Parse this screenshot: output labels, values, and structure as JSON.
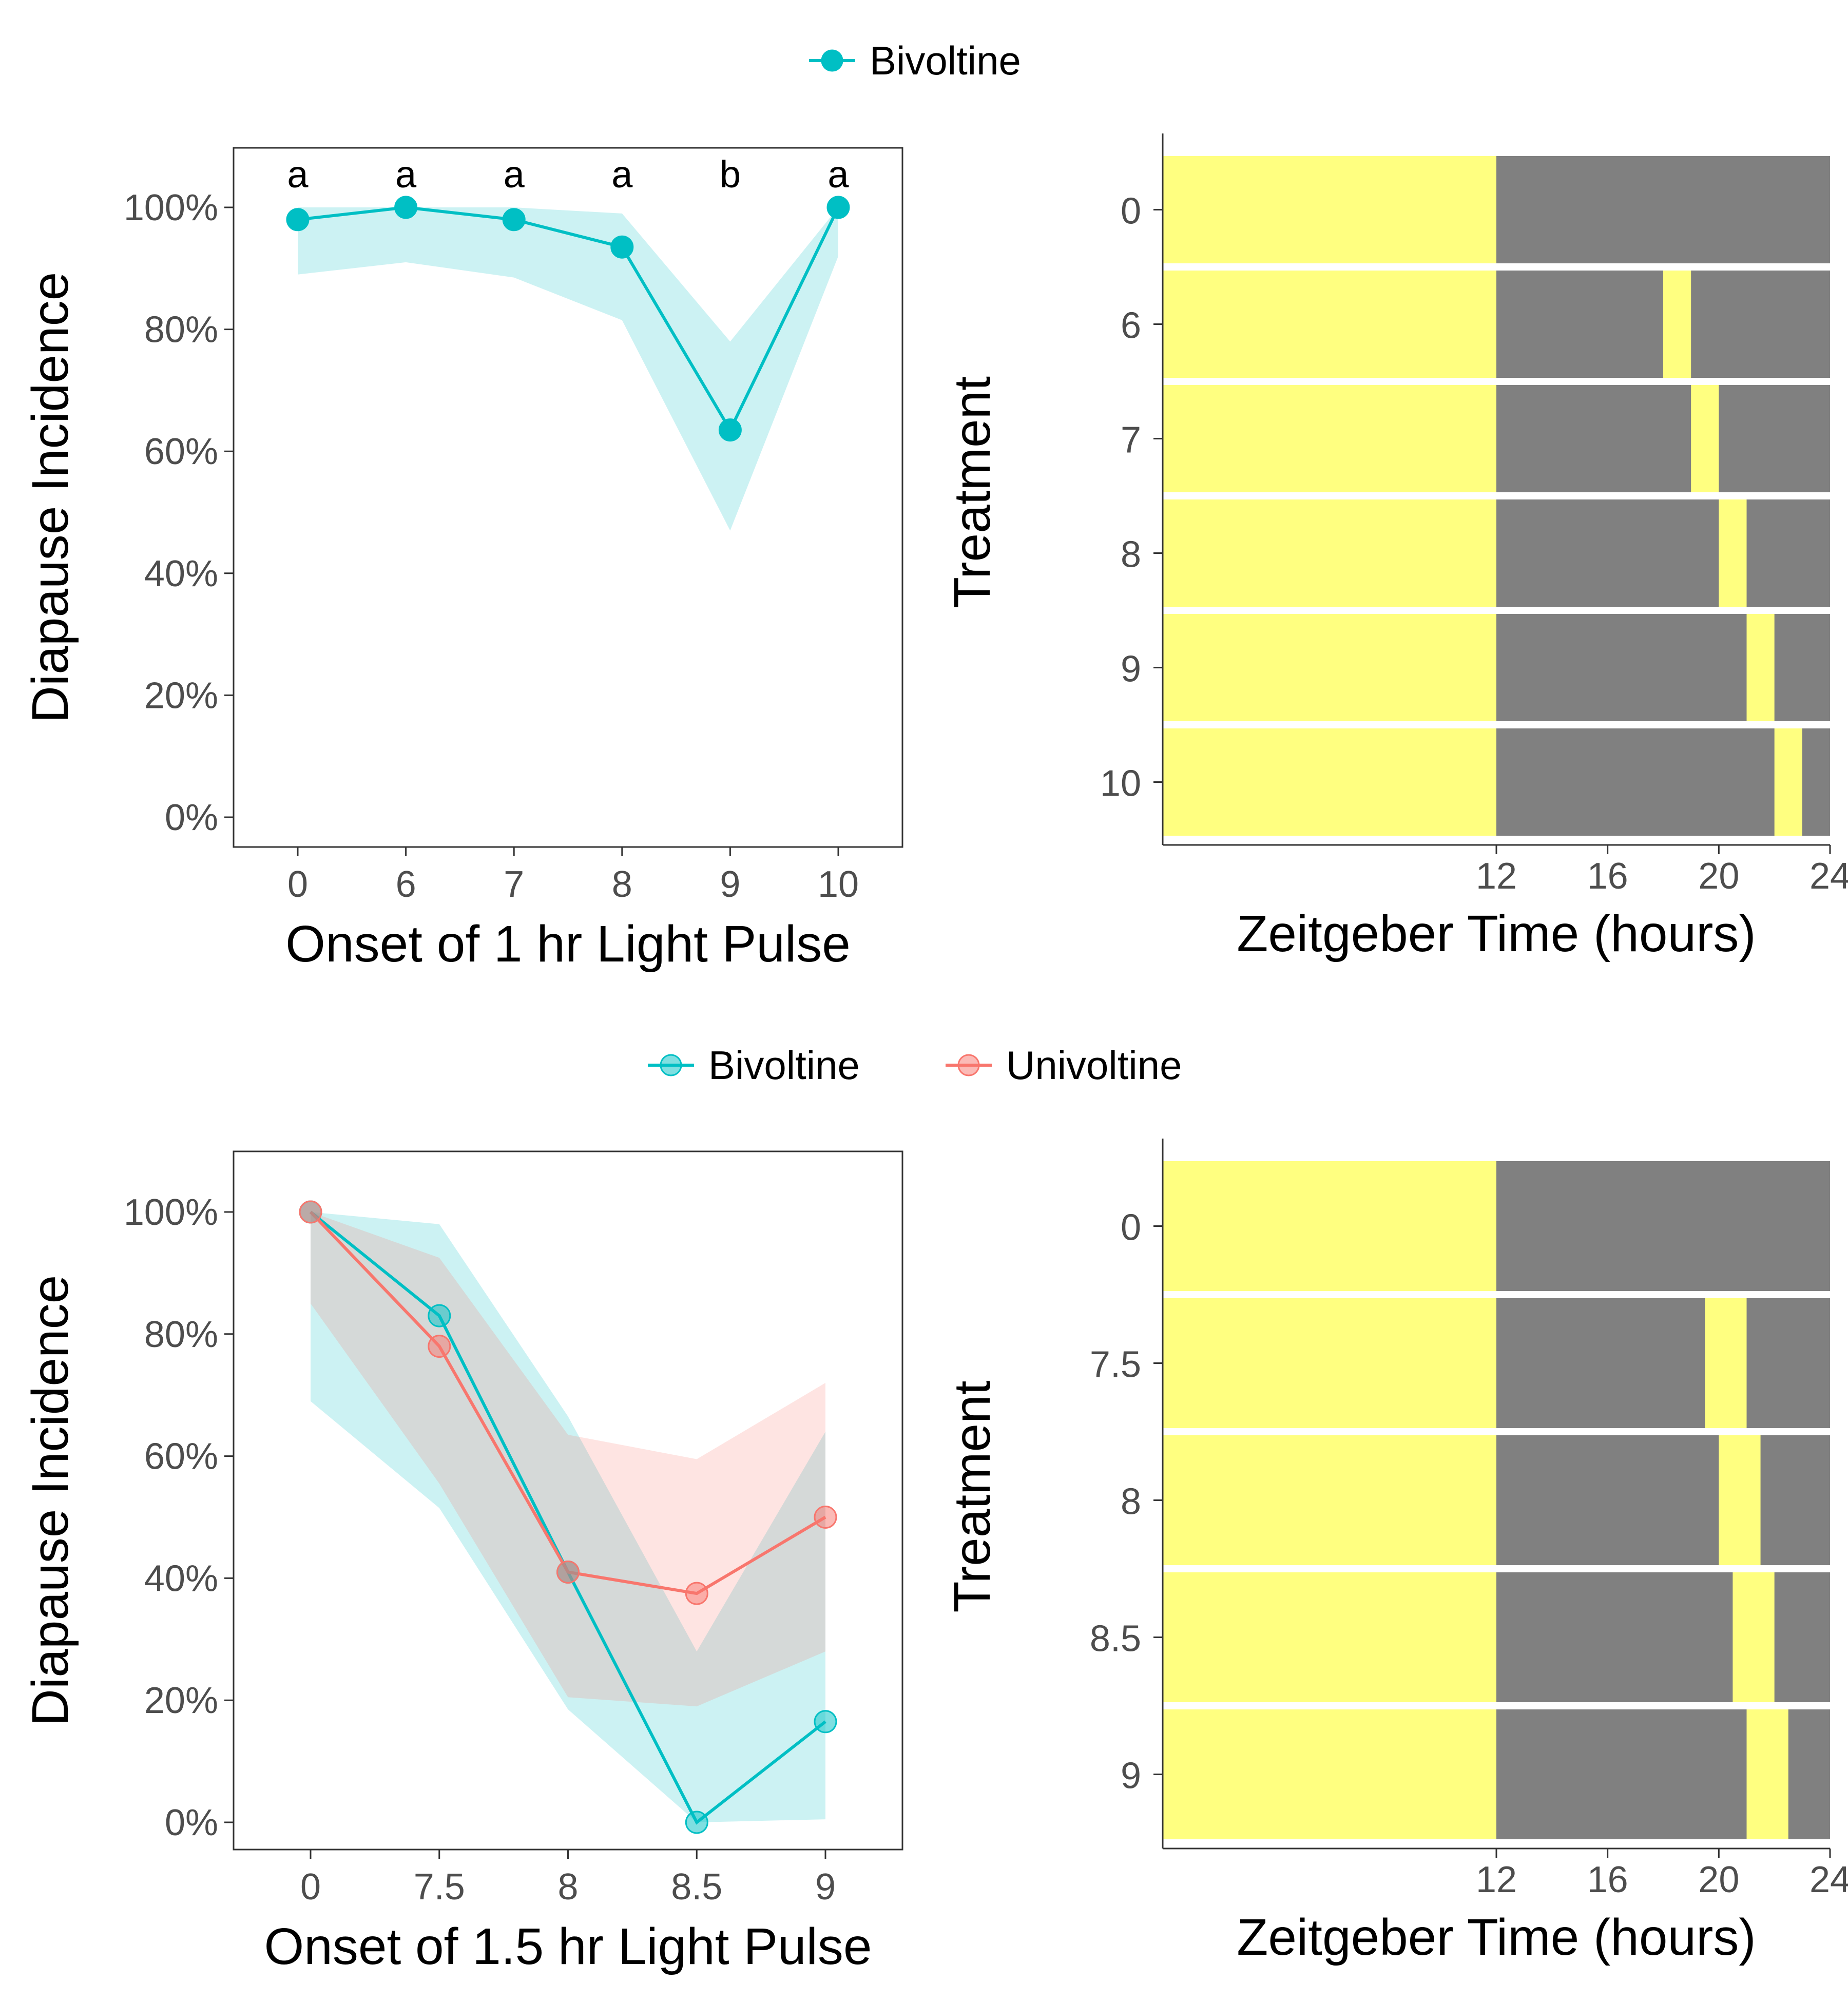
{
  "colors": {
    "bivoltine": "#00BFC4",
    "univoltine": "#F8766D",
    "light": "#FFFF80",
    "dark": "#808080"
  },
  "chart_data": [
    {
      "type": "line",
      "legend": [
        "Bivoltine"
      ],
      "legend_position": "top",
      "xlabel": "Onset of 1 hr Light Pulse",
      "ylabel": "Diapause Incidence",
      "categories": [
        "0",
        "6",
        "7",
        "8",
        "9",
        "10"
      ],
      "yticks": [
        "0%",
        "20%",
        "40%",
        "60%",
        "80%",
        "100%"
      ],
      "ylim": [
        0,
        1.05
      ],
      "grid": false,
      "series": [
        {
          "name": "Bivoltine",
          "values": [
            0.98,
            1.0,
            0.98,
            0.935,
            0.635,
            1.0
          ],
          "ci_low": [
            0.89,
            0.91,
            0.885,
            0.815,
            0.47,
            0.92
          ],
          "ci_high": [
            1.0,
            1.0,
            1.0,
            0.99,
            0.78,
            1.0
          ]
        }
      ],
      "significance_letters": [
        "a",
        "a",
        "a",
        "a",
        "b",
        "a"
      ]
    },
    {
      "type": "bar",
      "xlabel": "Zeitgeber Time (hours)",
      "ylabel": "Treatment",
      "categories": [
        "0",
        "6",
        "7",
        "8",
        "9",
        "10"
      ],
      "xticks": [
        "12",
        "16",
        "20",
        "24"
      ],
      "xlim": [
        0,
        24
      ],
      "light_phase_end": 12,
      "pulse_duration": 1,
      "pulse_starts": [
        null,
        18,
        19,
        20,
        21,
        22
      ]
    },
    {
      "type": "line",
      "legend": [
        "Bivoltine",
        "Univoltine"
      ],
      "legend_position": "top",
      "xlabel": "Onset of 1.5 hr Light Pulse",
      "ylabel": "Diapause Incidence",
      "categories": [
        "0",
        "7.5",
        "8",
        "8.5",
        "9"
      ],
      "yticks": [
        "0%",
        "20%",
        "40%",
        "60%",
        "80%",
        "100%"
      ],
      "ylim": [
        0,
        1.05
      ],
      "grid": false,
      "series": [
        {
          "name": "Bivoltine",
          "values": [
            1.0,
            0.83,
            0.41,
            0.0,
            0.165
          ],
          "ci_low": [
            0.69,
            0.515,
            0.185,
            0.0,
            0.005
          ],
          "ci_high": [
            1.0,
            0.98,
            0.665,
            0.28,
            0.64
          ]
        },
        {
          "name": "Univoltine",
          "values": [
            1.0,
            0.78,
            0.41,
            0.375,
            0.5
          ],
          "ci_low": [
            0.85,
            0.555,
            0.205,
            0.19,
            0.28
          ],
          "ci_high": [
            1.0,
            0.925,
            0.635,
            0.595,
            0.72
          ]
        }
      ]
    },
    {
      "type": "bar",
      "xlabel": "Zeitgeber Time (hours)",
      "ylabel": "Treatment",
      "categories": [
        "0",
        "7.5",
        "8",
        "8.5",
        "9"
      ],
      "xticks": [
        "12",
        "16",
        "20",
        "24"
      ],
      "xlim": [
        0,
        24
      ],
      "light_phase_end": 12,
      "pulse_duration": 1.5,
      "pulse_starts": [
        null,
        19.5,
        20,
        20.5,
        21
      ]
    }
  ]
}
